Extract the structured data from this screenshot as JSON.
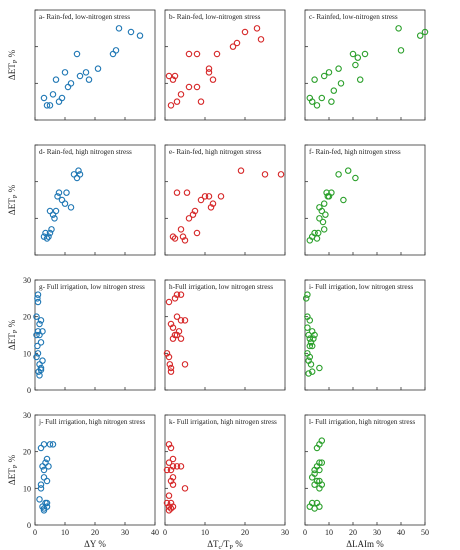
{
  "chart_data": {
    "type": "scatter",
    "panels": [
      {
        "title": "a- Rain-fed, low-nitrogen stress",
        "xlim": [
          0,
          40
        ],
        "ylim": [
          0,
          30
        ],
        "color": "#1f77b4",
        "points": [
          [
            3,
            6
          ],
          [
            4,
            4
          ],
          [
            5,
            4
          ],
          [
            6,
            7
          ],
          [
            7,
            11
          ],
          [
            8,
            5
          ],
          [
            9,
            6
          ],
          [
            10,
            13
          ],
          [
            11,
            9
          ],
          [
            12,
            10
          ],
          [
            14,
            18
          ],
          [
            15,
            12
          ],
          [
            17,
            13
          ],
          [
            18,
            11
          ],
          [
            21,
            14
          ],
          [
            26,
            18
          ],
          [
            27,
            19
          ],
          [
            28,
            25
          ],
          [
            32,
            24
          ],
          [
            35,
            23
          ]
        ]
      },
      {
        "title": "b- Rain-fed, low-nitrogen stress",
        "xlim": [
          0,
          30
        ],
        "ylim": [
          0,
          30
        ],
        "color": "#d62728",
        "points": [
          [
            1,
            12
          ],
          [
            1.5,
            4
          ],
          [
            2,
            11
          ],
          [
            2.5,
            12
          ],
          [
            3,
            5
          ],
          [
            4,
            7
          ],
          [
            6,
            18
          ],
          [
            6,
            9
          ],
          [
            8,
            18
          ],
          [
            8,
            9
          ],
          [
            9,
            5
          ],
          [
            11,
            14
          ],
          [
            11,
            13
          ],
          [
            12,
            11
          ],
          [
            13,
            18
          ],
          [
            17,
            20
          ],
          [
            18,
            21
          ],
          [
            20,
            24
          ],
          [
            23,
            25
          ],
          [
            24,
            22
          ]
        ]
      },
      {
        "title": "c- Rainfed, low-nitrogen stress",
        "xlim": [
          0,
          50
        ],
        "ylim": [
          0,
          30
        ],
        "color": "#2ca02c",
        "points": [
          [
            2,
            6
          ],
          [
            3,
            5
          ],
          [
            4,
            11
          ],
          [
            5,
            4
          ],
          [
            7,
            6
          ],
          [
            8,
            12
          ],
          [
            10,
            13
          ],
          [
            11,
            5
          ],
          [
            12,
            8
          ],
          [
            14,
            14
          ],
          [
            15,
            10
          ],
          [
            20,
            18
          ],
          [
            21,
            15
          ],
          [
            22,
            17
          ],
          [
            23,
            11
          ],
          [
            25,
            18
          ],
          [
            39,
            25
          ],
          [
            40,
            19
          ],
          [
            48,
            23
          ],
          [
            50,
            24
          ]
        ]
      },
      {
        "title": "d- Rain-fed, high nitrogen stress",
        "xlim": [
          0,
          40
        ],
        "ylim": [
          0,
          30
        ],
        "color": "#1f77b4",
        "points": [
          [
            3,
            5
          ],
          [
            3.5,
            6
          ],
          [
            4,
            4.5
          ],
          [
            4.5,
            5
          ],
          [
            5,
            6
          ],
          [
            5.5,
            7
          ],
          [
            6,
            11
          ],
          [
            6.5,
            10
          ],
          [
            7,
            12
          ],
          [
            7.5,
            16
          ],
          [
            8,
            17
          ],
          [
            9,
            15
          ],
          [
            10,
            14
          ],
          [
            10.5,
            17
          ],
          [
            12,
            13
          ],
          [
            13,
            22
          ],
          [
            14,
            21
          ],
          [
            14.5,
            23
          ],
          [
            15,
            22
          ],
          [
            5,
            12
          ]
        ]
      },
      {
        "title": "e- Rain-fed, high nitrogen stress",
        "xlim": [
          0,
          30
        ],
        "ylim": [
          0,
          30
        ],
        "color": "#d62728",
        "points": [
          [
            2,
            5
          ],
          [
            2.5,
            4.5
          ],
          [
            3,
            17
          ],
          [
            4,
            7
          ],
          [
            4.5,
            5
          ],
          [
            5,
            4
          ],
          [
            5.5,
            17
          ],
          [
            6,
            10
          ],
          [
            7,
            11
          ],
          [
            7.5,
            12
          ],
          [
            8,
            6
          ],
          [
            9,
            15
          ],
          [
            10,
            16
          ],
          [
            11,
            16
          ],
          [
            11.5,
            13
          ],
          [
            12,
            14
          ],
          [
            14,
            16
          ],
          [
            19,
            23
          ],
          [
            25,
            22
          ],
          [
            29,
            22
          ]
        ]
      },
      {
        "title": "f- Rain-fed, high nitrogen stress",
        "xlim": [
          0,
          50
        ],
        "ylim": [
          0,
          30
        ],
        "color": "#2ca02c",
        "points": [
          [
            2,
            4
          ],
          [
            3,
            5
          ],
          [
            4,
            6
          ],
          [
            5,
            4.5
          ],
          [
            5.5,
            6
          ],
          [
            6,
            10
          ],
          [
            7,
            12
          ],
          [
            7.5,
            9
          ],
          [
            8,
            14
          ],
          [
            8.5,
            11
          ],
          [
            9,
            17
          ],
          [
            9.5,
            16
          ],
          [
            10,
            16
          ],
          [
            11,
            17
          ],
          [
            14,
            22
          ],
          [
            16,
            15
          ],
          [
            18,
            23
          ],
          [
            21,
            21
          ],
          [
            8,
            7
          ],
          [
            6,
            13
          ]
        ]
      },
      {
        "title": "g- Full irrigation, low nitrogen stress",
        "xlim": [
          0,
          40
        ],
        "ylim": [
          0,
          30
        ],
        "color": "#1f77b4",
        "points": [
          [
            0.5,
            20
          ],
          [
            0.8,
            25
          ],
          [
            1,
            26
          ],
          [
            1.5,
            18
          ],
          [
            0.5,
            15
          ],
          [
            1,
            16
          ],
          [
            1.5,
            15
          ],
          [
            2,
            13
          ],
          [
            0.5,
            9
          ],
          [
            1,
            10
          ],
          [
            1.5,
            7
          ],
          [
            2,
            6
          ],
          [
            0.8,
            12
          ],
          [
            2.5,
            16
          ],
          [
            2,
            19
          ],
          [
            1,
            24
          ],
          [
            1.2,
            5
          ],
          [
            2,
            5.5
          ],
          [
            1.5,
            4
          ],
          [
            2.5,
            8
          ]
        ]
      },
      {
        "title": "h-Full irrigation, low nitrogen stress",
        "xlim": [
          0,
          30
        ],
        "ylim": [
          0,
          30
        ],
        "color": "#d62728",
        "points": [
          [
            0.5,
            10
          ],
          [
            1,
            9
          ],
          [
            1.2,
            7
          ],
          [
            1.5,
            6
          ],
          [
            1.5,
            5
          ],
          [
            1.5,
            18
          ],
          [
            2,
            17
          ],
          [
            2,
            14
          ],
          [
            2.5,
            15
          ],
          [
            3,
            15
          ],
          [
            3.5,
            16
          ],
          [
            4,
            14
          ],
          [
            3,
            20
          ],
          [
            4,
            19
          ],
          [
            2.5,
            25
          ],
          [
            3,
            26
          ],
          [
            4,
            26
          ],
          [
            1,
            24
          ],
          [
            5,
            7
          ],
          [
            5,
            19
          ]
        ]
      },
      {
        "title": "i- Full irrigation, low nitrogen stress",
        "xlim": [
          0,
          50
        ],
        "ylim": [
          0,
          30
        ],
        "color": "#2ca02c",
        "points": [
          [
            0.5,
            25
          ],
          [
            1,
            26
          ],
          [
            1,
            17
          ],
          [
            2,
            19
          ],
          [
            1.5,
            15
          ],
          [
            2,
            14
          ],
          [
            3,
            16
          ],
          [
            2.5,
            13
          ],
          [
            3,
            12
          ],
          [
            1,
            10
          ],
          [
            2,
            9
          ],
          [
            2.5,
            7
          ],
          [
            3,
            5
          ],
          [
            1.5,
            8
          ],
          [
            4,
            15
          ],
          [
            2,
            12
          ],
          [
            6,
            6
          ],
          [
            1,
            20
          ],
          [
            3.5,
            14
          ],
          [
            1.5,
            4.5
          ]
        ]
      },
      {
        "title": "j- Full irrigation, high nitrogen stress",
        "xlim": [
          0,
          40
        ],
        "ylim": [
          0,
          30
        ],
        "color": "#1f77b4",
        "points": [
          [
            1.5,
            7
          ],
          [
            2,
            11
          ],
          [
            2.5,
            5
          ],
          [
            3,
            4.5
          ],
          [
            3.5,
            6
          ],
          [
            4,
            5
          ],
          [
            3,
            13
          ],
          [
            4,
            12
          ],
          [
            2.5,
            16
          ],
          [
            3,
            15
          ],
          [
            3.5,
            17
          ],
          [
            4,
            18
          ],
          [
            2,
            21
          ],
          [
            5,
            22
          ],
          [
            4.5,
            16
          ],
          [
            6,
            22
          ],
          [
            3,
            22
          ],
          [
            2,
            10
          ],
          [
            4,
            6
          ],
          [
            3,
            4
          ]
        ]
      },
      {
        "title": "k- Full irrigation, high nitrogen stress",
        "xlim": [
          0,
          30
        ],
        "ylim": [
          0,
          30
        ],
        "color": "#d62728",
        "points": [
          [
            0.5,
            6
          ],
          [
            1,
            5
          ],
          [
            1.5,
            4.5
          ],
          [
            1,
            8
          ],
          [
            1.5,
            12
          ],
          [
            2,
            11
          ],
          [
            1.5,
            15
          ],
          [
            2,
            16
          ],
          [
            1,
            17
          ],
          [
            2,
            18
          ],
          [
            1,
            22
          ],
          [
            1.5,
            21
          ],
          [
            3,
            16
          ],
          [
            4,
            16
          ],
          [
            5,
            10
          ],
          [
            1,
            4
          ],
          [
            2,
            5
          ],
          [
            0.5,
            15
          ],
          [
            2,
            13
          ],
          [
            1.5,
            6
          ]
        ]
      },
      {
        "title": "l- Full irrigation, high nitrogen stress",
        "xlim": [
          0,
          50
        ],
        "ylim": [
          0,
          30
        ],
        "color": "#2ca02c",
        "points": [
          [
            2,
            5
          ],
          [
            3,
            6
          ],
          [
            4,
            4.5
          ],
          [
            5,
            6
          ],
          [
            6,
            5
          ],
          [
            4,
            11
          ],
          [
            5,
            12
          ],
          [
            6,
            10
          ],
          [
            5,
            16
          ],
          [
            6,
            17
          ],
          [
            4,
            15
          ],
          [
            7,
            17
          ],
          [
            5,
            21
          ],
          [
            6,
            22
          ],
          [
            7,
            23
          ],
          [
            4,
            14
          ],
          [
            6,
            15
          ],
          [
            3,
            13
          ],
          [
            7,
            11
          ],
          [
            6,
            12
          ]
        ]
      }
    ],
    "y_label": "ΔET",
    "y_label_sub": "P",
    "y_label_suffix": " %",
    "x_labels": [
      {
        "main": "ΔY %",
        "sub": "",
        "tail": ""
      },
      {
        "main": "ΔT",
        "sub": "P",
        "tail": " %",
        "prefix_sub": "c",
        "mid": "/T"
      },
      {
        "main": "ΔLAIm %",
        "sub": "",
        "tail": ""
      }
    ],
    "x_ticks": [
      [
        0,
        10,
        20,
        30,
        40
      ],
      [
        0,
        10,
        20,
        30
      ],
      [
        0,
        10,
        20,
        30,
        40,
        50
      ]
    ],
    "y_ticks": [
      0,
      10,
      20,
      30
    ],
    "grid": false,
    "marker": "open-circle"
  }
}
